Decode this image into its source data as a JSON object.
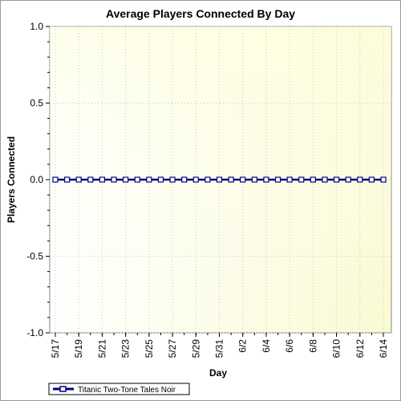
{
  "chart_data": {
    "type": "line",
    "title": "Average Players Connected By Day",
    "xlabel": "Day",
    "ylabel": "Players Connected",
    "ylim": [
      -1.0,
      1.0
    ],
    "y_ticks": [
      "1.0",
      "0.5",
      "0.0",
      "-0.5",
      "-1.0"
    ],
    "y_tick_values": [
      1.0,
      0.5,
      0.0,
      -0.5,
      -1.0
    ],
    "x_tick_labels": [
      "5/17",
      "5/19",
      "5/21",
      "5/23",
      "5/25",
      "5/27",
      "5/29",
      "5/31",
      "6/2",
      "6/4",
      "6/6",
      "6/8",
      "6/10",
      "6/12",
      "6/14"
    ],
    "x": [
      "5/17",
      "5/18",
      "5/19",
      "5/20",
      "5/21",
      "5/22",
      "5/23",
      "5/24",
      "5/25",
      "5/26",
      "5/27",
      "5/28",
      "5/29",
      "5/30",
      "5/31",
      "6/1",
      "6/2",
      "6/3",
      "6/4",
      "6/5",
      "6/6",
      "6/7",
      "6/8",
      "6/9",
      "6/10",
      "6/11",
      "6/12",
      "6/13",
      "6/14"
    ],
    "series": [
      {
        "name": "Titanic Two-Tone Tales Noir",
        "values": [
          0,
          0,
          0,
          0,
          0,
          0,
          0,
          0,
          0,
          0,
          0,
          0,
          0,
          0,
          0,
          0,
          0,
          0,
          0,
          0,
          0,
          0,
          0,
          0,
          0,
          0,
          0,
          0,
          0
        ],
        "color": "#000080",
        "marker": "square"
      }
    ],
    "grid": true,
    "legend_position": "bottom-left",
    "background": "yellow gradient"
  }
}
